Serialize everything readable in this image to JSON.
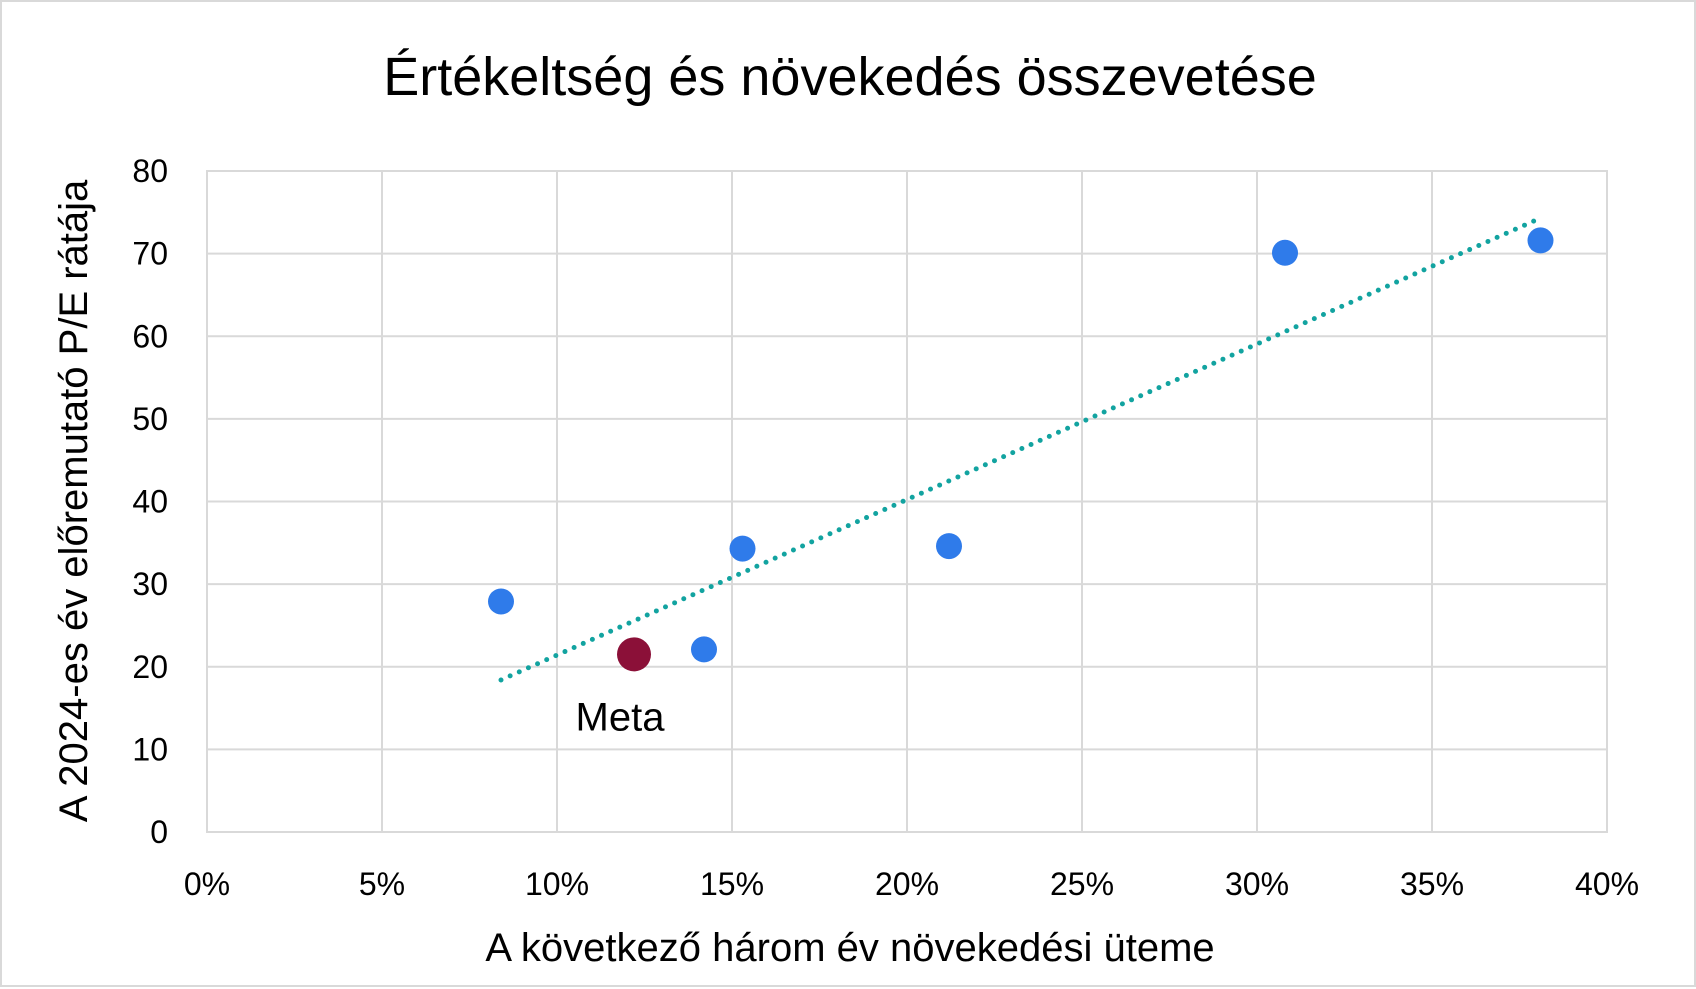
{
  "chart_data": {
    "type": "scatter",
    "title": "Értékeltség és növekedés összevetése",
    "xlabel": "A következő három év növekedési üteme",
    "ylabel": "A 2024-es év előremutató P/E rátája",
    "xlim": [
      0,
      40
    ],
    "ylim": [
      0,
      80
    ],
    "x_ticks": [
      0,
      5,
      10,
      15,
      20,
      25,
      30,
      35,
      40
    ],
    "x_tick_labels": [
      "0%",
      "5%",
      "10%",
      "15%",
      "20%",
      "25%",
      "30%",
      "35%",
      "40%"
    ],
    "y_ticks": [
      0,
      10,
      20,
      30,
      40,
      50,
      60,
      70,
      80
    ],
    "y_tick_labels": [
      "0",
      "10",
      "20",
      "30",
      "40",
      "50",
      "60",
      "70",
      "80"
    ],
    "grid": true,
    "points": [
      {
        "x": 8.4,
        "y": 27.9,
        "label": ""
      },
      {
        "x": 12.2,
        "y": 21.5,
        "label": "Meta",
        "highlight": true
      },
      {
        "x": 14.2,
        "y": 22.1,
        "label": ""
      },
      {
        "x": 15.3,
        "y": 34.3,
        "label": ""
      },
      {
        "x": 21.2,
        "y": 34.6,
        "label": ""
      },
      {
        "x": 30.8,
        "y": 70.1,
        "label": ""
      },
      {
        "x": 38.1,
        "y": 71.6,
        "label": ""
      }
    ],
    "trendline": {
      "style": "dotted",
      "x": [
        8.4,
        38.1
      ],
      "y": [
        18.4,
        74.3
      ]
    },
    "colors": {
      "point": "#2F7BEA",
      "highlight": "#8B1038",
      "trendline": "#12A3A0",
      "grid": "#D9D9D9"
    }
  }
}
